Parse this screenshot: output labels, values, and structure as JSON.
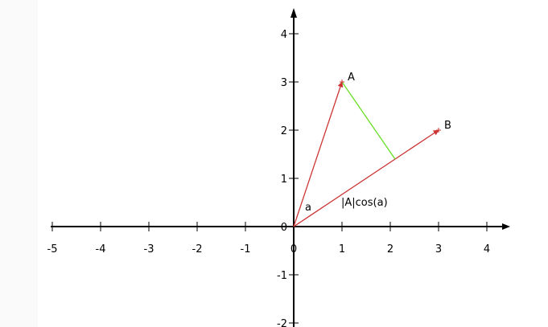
{
  "colors": {
    "axis": "#000000",
    "vector": "#cc3333",
    "projection": "#66dd22"
  },
  "axes": {
    "x_ticks": [
      "-5",
      "-4",
      "-3",
      "-2",
      "-1",
      "0",
      "1",
      "2",
      "3",
      "4"
    ],
    "y_ticks": [
      "-2",
      "-1",
      "0",
      "1",
      "2",
      "3",
      "4"
    ]
  },
  "points": {
    "A": {
      "label": "A",
      "x": 1,
      "y": 3
    },
    "B": {
      "label": "B",
      "x": 3,
      "y": 2
    }
  },
  "projection_foot": {
    "x": 2.1,
    "y": 1.4
  },
  "labels": {
    "angle": "a",
    "projection": "|A|cos(a)"
  }
}
